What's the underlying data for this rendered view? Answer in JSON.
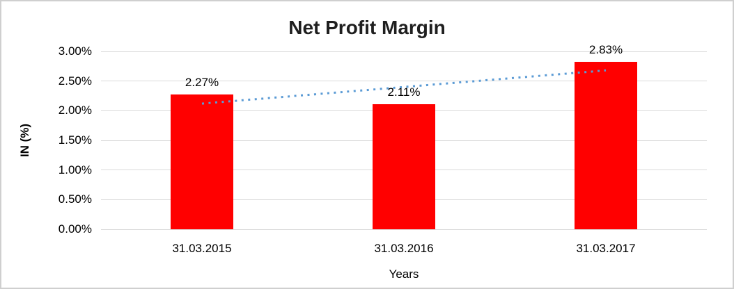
{
  "window": {
    "background": "#ffffff",
    "border_color": "#cfcfcf"
  },
  "chart_data": {
    "type": "bar",
    "title": "Net Profit Margin",
    "xlabel": "Years",
    "ylabel": "IN (%)",
    "categories": [
      "31.03.2015",
      "31.03.2016",
      "31.03.2017"
    ],
    "values": [
      2.27,
      2.11,
      2.83
    ],
    "data_labels": [
      "2.27%",
      "2.11%",
      "2.83%"
    ],
    "ylim": [
      0,
      3
    ],
    "yticks": [
      0.0,
      0.5,
      1.0,
      1.5,
      2.0,
      2.5,
      3.0
    ],
    "ytick_labels": [
      "0.00%",
      "0.50%",
      "1.00%",
      "1.50%",
      "2.00%",
      "2.50%",
      "3.00%"
    ],
    "grid": true,
    "legend": "none",
    "bar_color": "#ff0000",
    "gridline_color": "#d9d9d9",
    "text_color": "#000000",
    "title_color": "#1f1f1f",
    "trendline": {
      "style": "dotted",
      "color": "#5b9bd5",
      "values": [
        2.12,
        2.4,
        2.68
      ]
    }
  }
}
